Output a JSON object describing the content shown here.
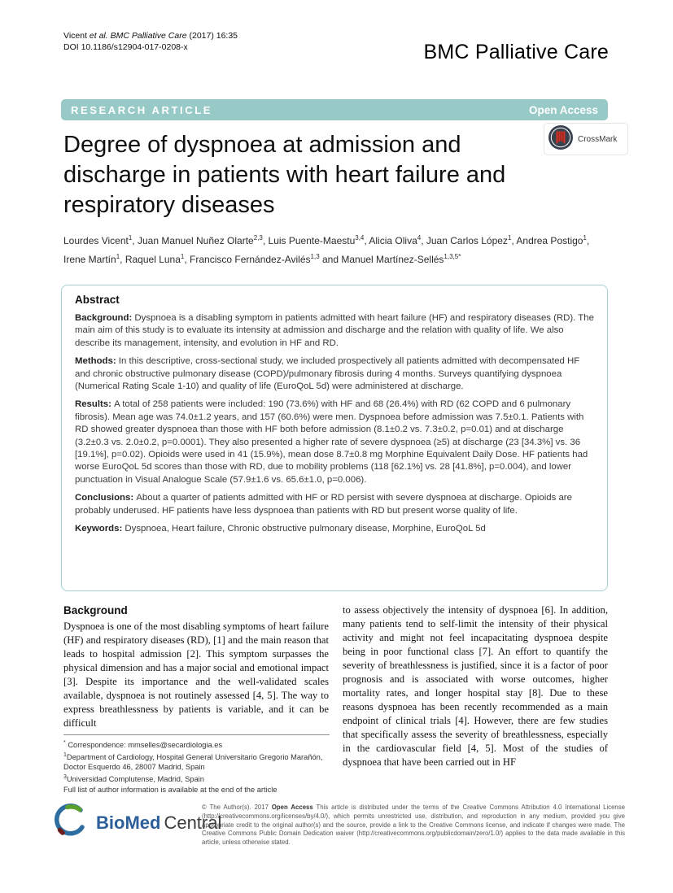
{
  "header": {
    "citation_pre": "Vicent ",
    "citation_italic": "et al. BMC Palliative Care",
    "citation_post": " (2017) 16:35",
    "doi": "DOI 10.1186/s12904-017-0208-x",
    "journal": "BMC Palliative Care"
  },
  "band": {
    "left": "RESEARCH ARTICLE",
    "right": "Open Access",
    "color": "#97c9c6"
  },
  "article": {
    "title": "Degree of dyspnoea at admission and discharge in patients with heart failure and respiratory diseases",
    "title_lines": [
      "Degree of dyspnoea at admission and",
      "discharge in patients with heart failure and",
      "respiratory diseases"
    ],
    "crossmark_label": "CrossMark",
    "authors": [
      {
        "name": "Lourdes Vicent",
        "sup": "1",
        "sep": ", "
      },
      {
        "name": "Juan Manuel Nuñez Olarte",
        "sup": "2,3",
        "sep": ", "
      },
      {
        "name": "Luis Puente-Maestu",
        "sup": "3,4",
        "sep": ", "
      },
      {
        "name": "Alicia Oliva",
        "sup": "4",
        "sep": ", "
      },
      {
        "name": "Juan Carlos López",
        "sup": "1",
        "sep": ", "
      },
      {
        "name": "Andrea Postigo",
        "sup": "1",
        "sep": ", "
      },
      {
        "name": "Irene Martín",
        "sup": "1",
        "sep": ", "
      },
      {
        "name": "Raquel Luna",
        "sup": "1",
        "sep": ", "
      },
      {
        "name": "Francisco Fernández-Avilés",
        "sup": "1,3",
        "sep": " and "
      },
      {
        "name": "Manuel Martínez-Sellés",
        "sup": "1,3,5*",
        "sep": ""
      }
    ]
  },
  "abstract": {
    "heading": "Abstract",
    "sections": [
      {
        "label": "Background:",
        "text": "Dyspnoea is a disabling symptom in patients admitted with heart failure (HF) and respiratory diseases (RD). The main aim of this study is to evaluate its intensity at admission and discharge and the relation with quality of life. We also describe its management, intensity, and evolution in HF and RD."
      },
      {
        "label": "Methods:",
        "text": "In this descriptive, cross-sectional study, we included prospectively all patients admitted with decompensated HF and chronic obstructive pulmonary disease (COPD)/pulmonary fibrosis during 4 months. Surveys quantifying dyspnoea (Numerical Rating Scale 1-10) and quality of life (EuroQoL 5d) were administered at discharge."
      },
      {
        "label": "Results:",
        "text": "A total of 258 patients were included: 190 (73.6%) with HF and 68 (26.4%) with RD (62 COPD and 6 pulmonary fibrosis). Mean age was 74.0±1.2 years, and 157 (60.6%) were men. Dyspnoea before admission was 7.5±0.1. Patients with RD showed greater dyspnoea than those with HF both before admission (8.1±0.2 vs. 7.3±0.2, p=0.01) and at discharge (3.2±0.3 vs. 2.0±0.2, p=0.0001). They also presented a higher rate of severe dyspnoea (≥5) at discharge (23 [34.3%] vs. 36 [19.1%], p=0.02). Opioids were used in 41 (15.9%), mean dose 8.7±0.8 mg Morphine Equivalent Daily Dose. HF patients had worse EuroQoL 5d scores than those with RD, due to mobility problems (118 [62.1%] vs. 28 [41.8%], p=0.004), and lower punctuation in Visual Analogue Scale (57.9±1.6 vs. 65.6±1.0, p=0.006)."
      },
      {
        "label": "Conclusions:",
        "text": "About a quarter of patients admitted with HF or RD persist with severe dyspnoea at discharge. Opioids are probably underused. HF patients have less dyspnoea than patients with RD but present worse quality of life."
      },
      {
        "label": "Keywords:",
        "text": "Dyspnoea, Heart failure, Chronic obstructive pulmonary disease, Morphine, EuroQoL 5d"
      }
    ]
  },
  "body": {
    "left_heading": "Background",
    "left_paragraph": "Dyspnoea is one of the most disabling symptoms of heart failure (HF) and respiratory diseases (RD), [1] and the main reason that leads to hospital admission [2]. This symptom surpasses the physical dimension and has a major social and emotional impact [3]. Despite its importance and the well-validated scales available, dyspnoea is not routinely assessed [4, 5]. The way to express breathlessness by patients is variable, and it can be difficult",
    "right_paragraph": "to assess objectively the intensity of dyspnoea [6]. In addition, many patients tend to self-limit the intensity of their physical activity and might not feel incapacitating dyspnoea despite being in poor functional class [7]. An effort to quantify the severity of breathlessness is justified, since it is a factor of poor prognosis and is associated with worse outcomes, higher mortality rates, and longer hospital stay [8]. Due to these reasons dyspnoea has been recently recommended as a main endpoint of clinical trials [4]. However, there are few studies that specifically assess the severity of breathlessness, especially in the cardiovascular field [4, 5]. Most of the studies of dyspnoea that have been carried out in HF"
  },
  "footnotes": {
    "lines": [
      {
        "sup": "*",
        "text": " Correspondence: mmselles@secardiologia.es"
      },
      {
        "sup": "1",
        "text": "Department of Cardiology, Hospital General Universitario Gregorio Marañón, Doctor Esquerdo 46, 28007 Madrid, Spain"
      },
      {
        "sup": "3",
        "text": "Universidad Complutense, Madrid, Spain"
      },
      {
        "sup": "",
        "text": "Full list of author information is available at the end of the article"
      }
    ]
  },
  "footer": {
    "logo_biomed": "BioMed",
    "logo_central": "Central",
    "license_prefix": "© The Author(s). 2017 ",
    "license_bold": "Open Access",
    "license_text": " This article is distributed under the terms of the Creative Commons Attribution 4.0 International License (http://creativecommons.org/licenses/by/4.0/), which permits unrestricted use, distribution, and reproduction in any medium, provided you give appropriate credit to the original author(s) and the source, provide a link to the Creative Commons license, and indicate if changes were made. The Creative Commons Public Domain Dedication waiver (http://creativecommons.org/publicdomain/zero/1.0/) applies to the data made available in this article, unless otherwise stated."
  },
  "colors": {
    "band_teal": "#97c9c6",
    "abstract_border": "#a3d4d1",
    "crossmark_red": "#c5352c",
    "crossmark_dark": "#39414e",
    "biomed_blue": "#2d5f9a",
    "biomed_green": "#5aa02c"
  }
}
